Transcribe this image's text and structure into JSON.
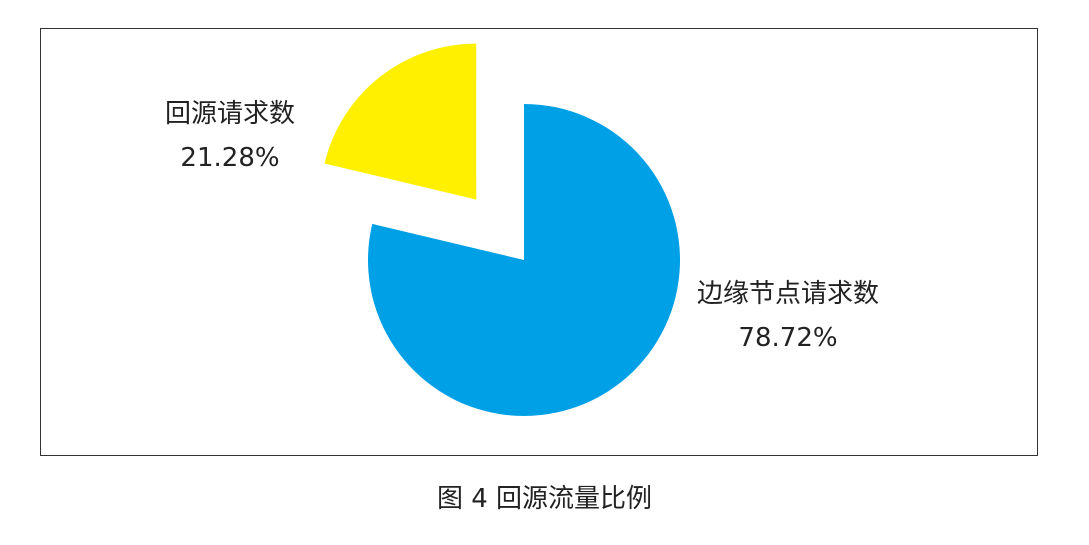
{
  "chart_data": {
    "type": "pie",
    "title": "",
    "slices": [
      {
        "label": "边缘节点请求数",
        "value": 78.72,
        "value_label": "78.72%",
        "color": "#00A0E6",
        "exploded": false
      },
      {
        "label": "回源请求数",
        "value": 21.28,
        "value_label": "21.28%",
        "color": "#FFF000",
        "exploded": true
      }
    ],
    "start_angle": "12 o'clock",
    "direction": "clockwise"
  },
  "caption": "图 4  回源流量比例"
}
